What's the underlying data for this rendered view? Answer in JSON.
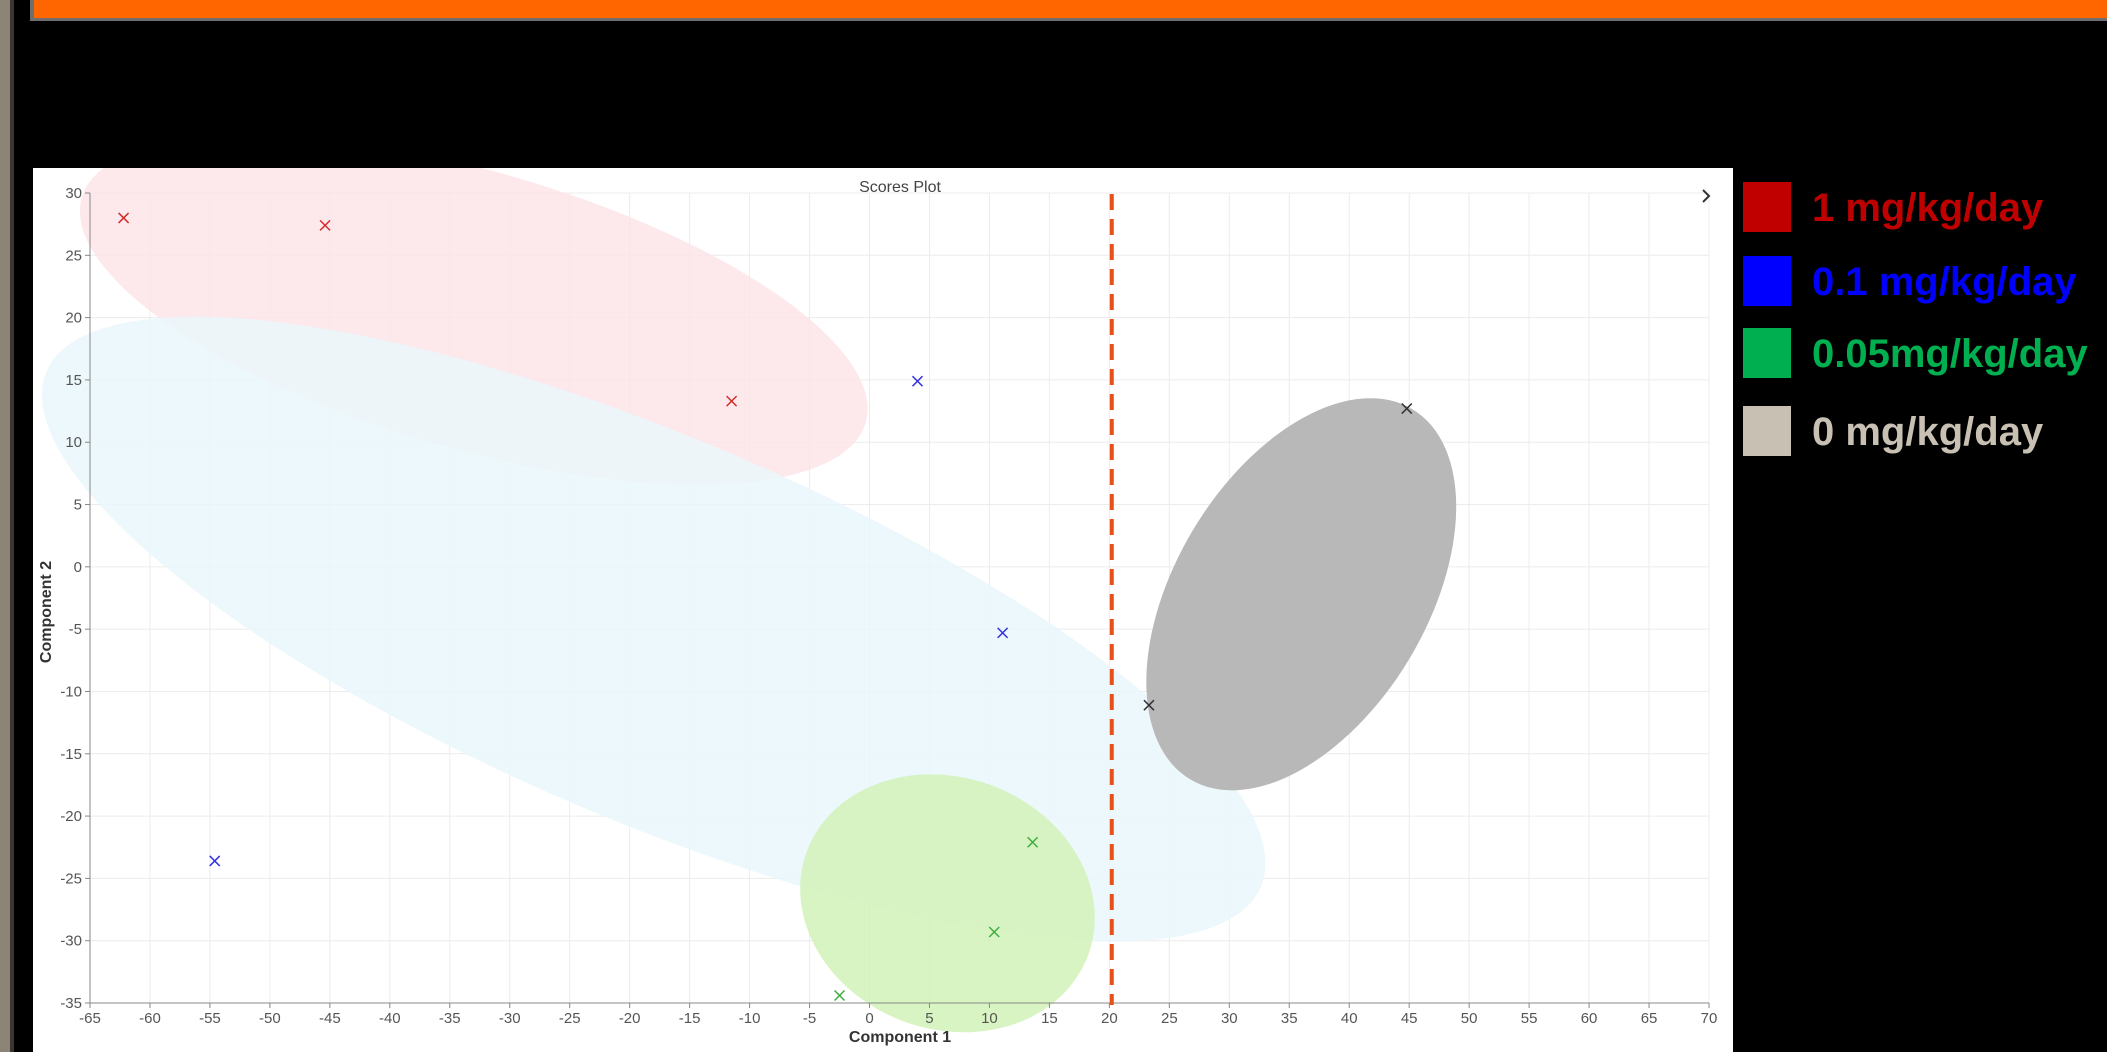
{
  "colors": {
    "background": "#000000",
    "top_bar": "#ff6600",
    "divider": "#e8501a"
  },
  "chart_data": {
    "type": "scatter",
    "title": "Scores Plot",
    "xlabel": "Component 1",
    "ylabel": "Component 2",
    "xlim": [
      -65,
      70
    ],
    "ylim": [
      -35,
      30
    ],
    "x_ticks": [
      -65,
      -60,
      -55,
      -50,
      -45,
      -40,
      -35,
      -30,
      -25,
      -20,
      -15,
      -10,
      -5,
      0,
      5,
      10,
      15,
      20,
      25,
      30,
      35,
      40,
      45,
      50,
      55,
      60,
      65,
      70
    ],
    "y_ticks": [
      -35,
      -30,
      -25,
      -20,
      -15,
      -10,
      -5,
      0,
      5,
      10,
      15,
      20,
      25,
      30
    ],
    "grid": true,
    "marker": "x",
    "vertical_divider_x": 20.2,
    "series": [
      {
        "name": "1 mg/kg/day",
        "marker_color": "#d42a2a",
        "ellipse_color": "#fde4e8",
        "legend_color": "#c00000",
        "points": [
          {
            "x": -62.2,
            "y": 28.0
          },
          {
            "x": -45.4,
            "y": 27.4
          },
          {
            "x": -11.5,
            "y": 13.3
          }
        ]
      },
      {
        "name": "0.1 mg/kg/day",
        "marker_color": "#3333dd",
        "ellipse_color": "#eaf7fc",
        "legend_color": "#0000ff",
        "points": [
          {
            "x": 4.0,
            "y": 14.9
          },
          {
            "x": 11.1,
            "y": -5.3
          },
          {
            "x": -54.6,
            "y": -23.6
          }
        ]
      },
      {
        "name": "0.05mg/kg/day",
        "marker_color": "#3fae3f",
        "ellipse_color": "#d2f2b8",
        "legend_color": "#00b050",
        "points": [
          {
            "x": 13.6,
            "y": -22.1
          },
          {
            "x": 10.4,
            "y": -29.3
          },
          {
            "x": -2.5,
            "y": -34.4
          }
        ]
      },
      {
        "name": "0 mg/kg/day",
        "marker_color": "#333333",
        "ellipse_color": "#b8b8b8",
        "legend_color": "#c9c0b4",
        "points": [
          {
            "x": 44.8,
            "y": 12.7
          },
          {
            "x": 23.3,
            "y": -11.1
          }
        ]
      }
    ]
  }
}
